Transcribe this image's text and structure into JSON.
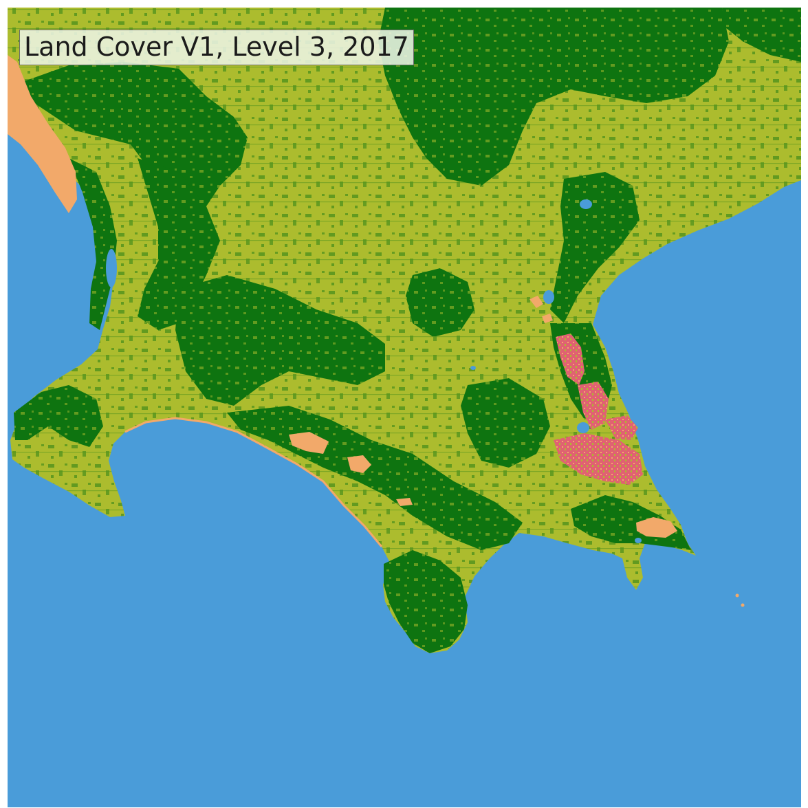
{
  "title": "Land Cover V1, Level 3, 2017",
  "colors": {
    "water": "#4a9cd9",
    "woody_vegetation": "#0e7410",
    "herbaceous_vegetation": "#acbc2e",
    "bare_surface": "#f2a96a",
    "artificial_surface": "#e06272"
  }
}
